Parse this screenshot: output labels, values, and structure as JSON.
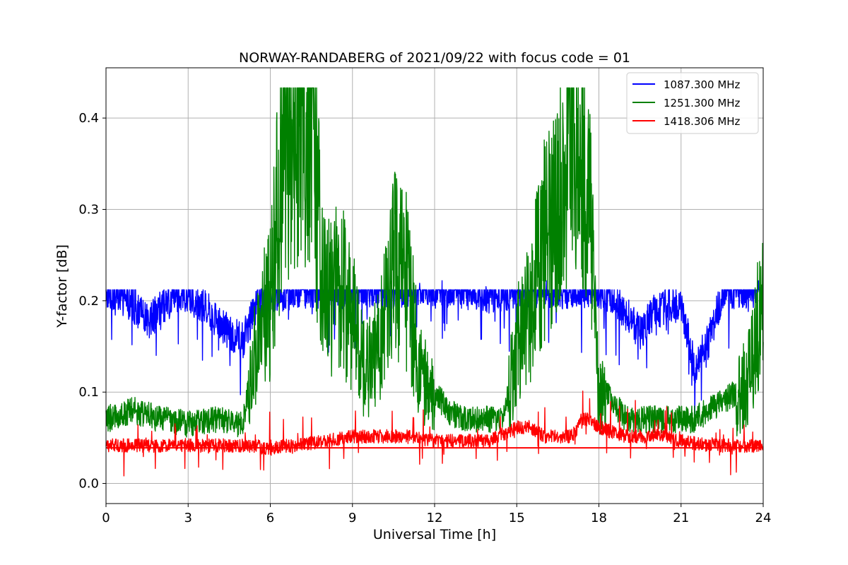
{
  "chart_data": {
    "type": "line",
    "title": "NORWAY-RANDABERG of 2021/09/22 with focus code = 01",
    "xlabel": "Universal Time [h]",
    "ylabel": "Y-factor [dB]",
    "xlim": [
      0,
      24
    ],
    "ylim": [
      -0.022,
      0.455
    ],
    "xticks": [
      0,
      3,
      6,
      9,
      12,
      15,
      18,
      21,
      24
    ],
    "yticks": [
      0.0,
      0.1,
      0.2,
      0.3,
      0.4
    ],
    "xtick_labels": [
      "0",
      "3",
      "6",
      "9",
      "12",
      "15",
      "18",
      "21",
      "24"
    ],
    "ytick_labels": [
      "0.0",
      "0.1",
      "0.2",
      "0.3",
      "0.4"
    ],
    "grid": true,
    "legend_position": "top-right",
    "series": [
      {
        "name": "1087.300 MHz",
        "color": "#0000ff",
        "description_points": {
          "x": [
            0,
            0.5,
            1,
            1.5,
            2,
            2.5,
            3,
            3.5,
            4,
            4.5,
            5,
            5.5,
            6,
            7,
            8,
            9,
            10,
            11,
            12,
            13,
            14,
            15,
            16,
            17,
            18,
            18.5,
            19,
            19.5,
            20,
            20.5,
            21,
            21.5,
            22,
            22.5,
            23,
            23.5,
            24
          ],
          "y": [
            0.205,
            0.2,
            0.19,
            0.17,
            0.185,
            0.2,
            0.2,
            0.19,
            0.175,
            0.16,
            0.15,
            0.19,
            0.2,
            0.205,
            0.205,
            0.205,
            0.205,
            0.205,
            0.205,
            0.205,
            0.2,
            0.205,
            0.205,
            0.205,
            0.205,
            0.2,
            0.18,
            0.16,
            0.18,
            0.19,
            0.19,
            0.12,
            0.15,
            0.2,
            0.205,
            0.205,
            0.21
          ]
        }
      },
      {
        "name": "1251.300 MHz",
        "color": "#008000",
        "description_points": {
          "x": [
            0,
            1,
            2,
            3,
            4,
            5,
            5.5,
            6,
            6.5,
            7,
            7.5,
            8,
            8.5,
            9,
            9.5,
            10,
            10.5,
            11,
            11.5,
            12,
            12.5,
            13,
            13.5,
            14,
            14.5,
            15,
            15.5,
            16,
            16.5,
            17,
            17.5,
            18,
            18.5,
            19,
            19.5,
            20,
            20.5,
            21,
            21.5,
            22,
            22.5,
            23,
            23.5,
            24
          ],
          "y": [
            0.06,
            0.07,
            0.06,
            0.055,
            0.06,
            0.055,
            0.15,
            0.2,
            0.38,
            0.42,
            0.4,
            0.2,
            0.22,
            0.18,
            0.12,
            0.15,
            0.24,
            0.22,
            0.12,
            0.09,
            0.07,
            0.06,
            0.06,
            0.06,
            0.06,
            0.15,
            0.2,
            0.26,
            0.3,
            0.4,
            0.38,
            0.1,
            0.08,
            0.06,
            0.06,
            0.06,
            0.06,
            0.06,
            0.06,
            0.07,
            0.08,
            0.09,
            0.12,
            0.2
          ]
        }
      },
      {
        "name": "1418.306 MHz",
        "color": "#ff0000",
        "description_points": {
          "x": [
            0,
            1,
            2,
            3,
            4,
            5,
            5.5,
            6,
            6.5,
            7,
            8,
            9,
            10,
            11,
            12,
            13,
            14,
            15,
            15.5,
            16,
            17,
            17.5,
            18,
            19,
            20,
            20.5,
            21,
            22,
            23,
            24
          ],
          "y": [
            0.04,
            0.04,
            0.04,
            0.04,
            0.04,
            0.04,
            0.04,
            0.035,
            0.04,
            0.04,
            0.045,
            0.05,
            0.05,
            0.05,
            0.045,
            0.045,
            0.045,
            0.06,
            0.06,
            0.05,
            0.05,
            0.07,
            0.06,
            0.05,
            0.05,
            0.05,
            0.045,
            0.04,
            0.04,
            0.04
          ]
        }
      }
    ]
  }
}
